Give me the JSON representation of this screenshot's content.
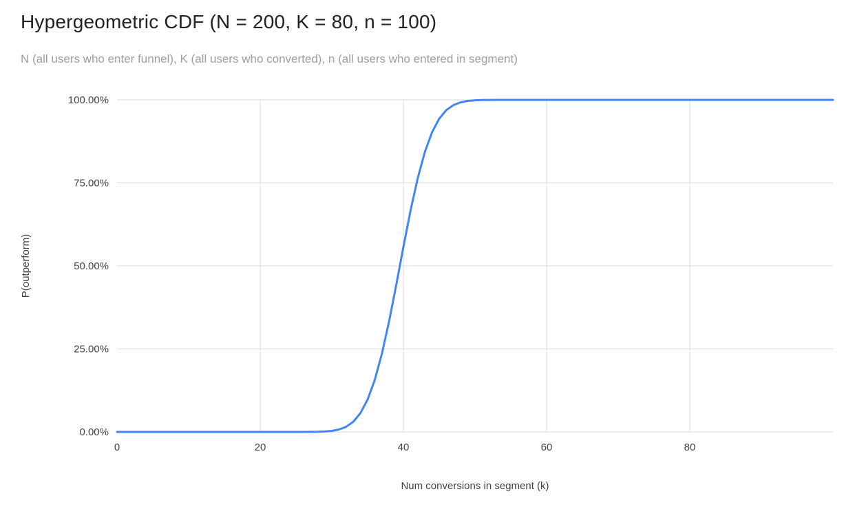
{
  "chart_data": {
    "type": "line",
    "title": "Hypergeometric CDF (N = 200, K = 80, n = 100)",
    "subtitle": "N (all users who enter funnel), K (all users who converted), n (all users who entered in segment)",
    "xlabel": "Num conversions in segment (k)",
    "ylabel": "P(outperform)",
    "xlim": [
      0,
      100
    ],
    "ylim": [
      0,
      1
    ],
    "x_ticks": [
      0,
      20,
      40,
      60,
      80
    ],
    "x_gridlines": [
      20,
      40,
      60,
      80
    ],
    "y_tick_labels": [
      "0.00%",
      "25.00%",
      "50.00%",
      "75.00%",
      "100.00%"
    ],
    "y_tick_values": [
      0,
      0.25,
      0.5,
      0.75,
      1
    ],
    "grid": true,
    "legend_position": "none",
    "colors": {
      "line": "#4285f4",
      "gridline": "#d9d9d9",
      "tick_text": "#444444",
      "axis_title_text": "#424242",
      "title_text": "#212121",
      "subtitle_text": "#9e9e9e",
      "background": "#ffffff"
    },
    "series": [
      {
        "name": "P(outperform)",
        "points": [
          [
            0,
            0
          ],
          [
            5,
            0
          ],
          [
            10,
            0
          ],
          [
            15,
            0
          ],
          [
            20,
            0
          ],
          [
            24,
            0
          ],
          [
            25,
            2e-05
          ],
          [
            26,
            0.0001
          ],
          [
            27,
            0.0002
          ],
          [
            28,
            0.0005
          ],
          [
            29,
            0.0013
          ],
          [
            30,
            0.0031
          ],
          [
            31,
            0.0072
          ],
          [
            32,
            0.0154
          ],
          [
            33,
            0.0306
          ],
          [
            34,
            0.0566
          ],
          [
            35,
            0.0975
          ],
          [
            36,
            0.1567
          ],
          [
            37,
            0.2358
          ],
          [
            38,
            0.3329
          ],
          [
            39,
            0.4428
          ],
          [
            40,
            0.5572
          ],
          [
            41,
            0.6671
          ],
          [
            42,
            0.7642
          ],
          [
            43,
            0.8433
          ],
          [
            44,
            0.9025
          ],
          [
            45,
            0.9434
          ],
          [
            46,
            0.9694
          ],
          [
            47,
            0.9846
          ],
          [
            48,
            0.9928
          ],
          [
            49,
            0.9969
          ],
          [
            50,
            0.9987
          ],
          [
            51,
            0.9995
          ],
          [
            52,
            0.9998
          ],
          [
            53,
            0.9999
          ],
          [
            54,
            1
          ],
          [
            56,
            1
          ],
          [
            60,
            1
          ],
          [
            70,
            1
          ],
          [
            80,
            1
          ],
          [
            90,
            1
          ],
          [
            100,
            1
          ]
        ]
      }
    ]
  }
}
